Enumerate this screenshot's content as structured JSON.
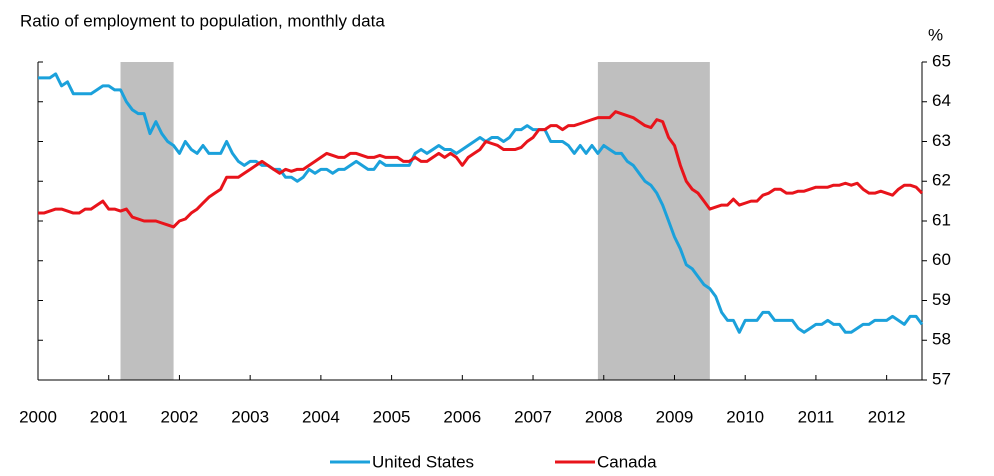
{
  "chart_data": {
    "type": "line",
    "title": "Ratio of employment to population, monthly data",
    "y_axis_label": "%",
    "x": [
      2000,
      2000.083,
      2000.167,
      2000.25,
      2000.333,
      2000.417,
      2000.5,
      2000.583,
      2000.667,
      2000.75,
      2000.833,
      2000.917,
      2001,
      2001.083,
      2001.167,
      2001.25,
      2001.333,
      2001.417,
      2001.5,
      2001.583,
      2001.667,
      2001.75,
      2001.833,
      2001.917,
      2002,
      2002.083,
      2002.167,
      2002.25,
      2002.333,
      2002.417,
      2002.5,
      2002.583,
      2002.667,
      2002.75,
      2002.833,
      2002.917,
      2003,
      2003.083,
      2003.167,
      2003.25,
      2003.333,
      2003.417,
      2003.5,
      2003.583,
      2003.667,
      2003.75,
      2003.833,
      2003.917,
      2004,
      2004.083,
      2004.167,
      2004.25,
      2004.333,
      2004.417,
      2004.5,
      2004.583,
      2004.667,
      2004.75,
      2004.833,
      2004.917,
      2005,
      2005.083,
      2005.167,
      2005.25,
      2005.333,
      2005.417,
      2005.5,
      2005.583,
      2005.667,
      2005.75,
      2005.833,
      2005.917,
      2006,
      2006.083,
      2006.167,
      2006.25,
      2006.333,
      2006.417,
      2006.5,
      2006.583,
      2006.667,
      2006.75,
      2006.833,
      2006.917,
      2007,
      2007.083,
      2007.167,
      2007.25,
      2007.333,
      2007.417,
      2007.5,
      2007.583,
      2007.667,
      2007.75,
      2007.833,
      2007.917,
      2008,
      2008.083,
      2008.167,
      2008.25,
      2008.333,
      2008.417,
      2008.5,
      2008.583,
      2008.667,
      2008.75,
      2008.833,
      2008.917,
      2009,
      2009.083,
      2009.167,
      2009.25,
      2009.333,
      2009.417,
      2009.5,
      2009.583,
      2009.667,
      2009.75,
      2009.833,
      2009.917,
      2010,
      2010.083,
      2010.167,
      2010.25,
      2010.333,
      2010.417,
      2010.5,
      2010.583,
      2010.667,
      2010.75,
      2010.833,
      2010.917,
      2011,
      2011.083,
      2011.167,
      2011.25,
      2011.333,
      2011.417,
      2011.5,
      2011.583,
      2011.667,
      2011.75,
      2011.833,
      2011.917,
      2012,
      2012.083,
      2012.167,
      2012.25,
      2012.333,
      2012.417,
      2012.5
    ],
    "series": [
      {
        "name": "United States",
        "color": "#1ba1db",
        "values": [
          64.6,
          64.6,
          64.6,
          64.7,
          64.4,
          64.5,
          64.2,
          64.2,
          64.2,
          64.2,
          64.3,
          64.4,
          64.4,
          64.3,
          64.3,
          64.0,
          63.8,
          63.7,
          63.7,
          63.2,
          63.5,
          63.2,
          63.0,
          62.9,
          62.7,
          63.0,
          62.8,
          62.7,
          62.9,
          62.7,
          62.7,
          62.7,
          63.0,
          62.7,
          62.5,
          62.4,
          62.5,
          62.5,
          62.4,
          62.4,
          62.3,
          62.3,
          62.1,
          62.1,
          62.0,
          62.1,
          62.3,
          62.2,
          62.3,
          62.3,
          62.2,
          62.3,
          62.3,
          62.4,
          62.5,
          62.4,
          62.3,
          62.3,
          62.5,
          62.4,
          62.4,
          62.4,
          62.4,
          62.4,
          62.7,
          62.8,
          62.7,
          62.8,
          62.9,
          62.8,
          62.8,
          62.7,
          62.8,
          62.9,
          63.0,
          63.1,
          63.0,
          63.1,
          63.1,
          63.0,
          63.1,
          63.3,
          63.3,
          63.4,
          63.3,
          63.3,
          63.3,
          63.0,
          63.0,
          63.0,
          62.9,
          62.7,
          62.9,
          62.7,
          62.9,
          62.7,
          62.9,
          62.8,
          62.7,
          62.7,
          62.5,
          62.4,
          62.2,
          62.0,
          61.9,
          61.7,
          61.4,
          61.0,
          60.6,
          60.3,
          59.9,
          59.8,
          59.6,
          59.4,
          59.3,
          59.1,
          58.7,
          58.5,
          58.5,
          58.2,
          58.5,
          58.5,
          58.5,
          58.7,
          58.7,
          58.5,
          58.5,
          58.5,
          58.5,
          58.3,
          58.2,
          58.3,
          58.4,
          58.4,
          58.5,
          58.4,
          58.4,
          58.2,
          58.2,
          58.3,
          58.4,
          58.4,
          58.5,
          58.5,
          58.5,
          58.6,
          58.5,
          58.4,
          58.6,
          58.6,
          58.4
        ]
      },
      {
        "name": "Canada",
        "color": "#e8141b",
        "values": [
          61.2,
          61.2,
          61.25,
          61.3,
          61.3,
          61.25,
          61.2,
          61.2,
          61.3,
          61.3,
          61.4,
          61.5,
          61.3,
          61.3,
          61.25,
          61.3,
          61.1,
          61.05,
          61.0,
          61.0,
          61.0,
          60.95,
          60.9,
          60.85,
          61.0,
          61.05,
          61.2,
          61.3,
          61.45,
          61.6,
          61.7,
          61.8,
          62.1,
          62.1,
          62.1,
          62.2,
          62.3,
          62.4,
          62.5,
          62.4,
          62.3,
          62.2,
          62.3,
          62.25,
          62.3,
          62.3,
          62.4,
          62.5,
          62.6,
          62.7,
          62.65,
          62.6,
          62.6,
          62.7,
          62.7,
          62.65,
          62.6,
          62.6,
          62.65,
          62.6,
          62.6,
          62.6,
          62.5,
          62.5,
          62.6,
          62.5,
          62.5,
          62.6,
          62.7,
          62.6,
          62.7,
          62.6,
          62.4,
          62.6,
          62.7,
          62.8,
          63.0,
          62.95,
          62.9,
          62.8,
          62.8,
          62.8,
          62.85,
          63.0,
          63.1,
          63.3,
          63.3,
          63.4,
          63.4,
          63.3,
          63.4,
          63.4,
          63.45,
          63.5,
          63.55,
          63.6,
          63.6,
          63.6,
          63.75,
          63.7,
          63.65,
          63.6,
          63.5,
          63.4,
          63.35,
          63.55,
          63.5,
          63.1,
          62.9,
          62.4,
          62.0,
          61.8,
          61.7,
          61.5,
          61.3,
          61.35,
          61.4,
          61.4,
          61.55,
          61.4,
          61.45,
          61.5,
          61.5,
          61.65,
          61.7,
          61.8,
          61.8,
          61.7,
          61.7,
          61.75,
          61.75,
          61.8,
          61.85,
          61.85,
          61.85,
          61.9,
          61.9,
          61.95,
          61.9,
          61.95,
          61.8,
          61.7,
          61.7,
          61.75,
          61.7,
          61.65,
          61.8,
          61.9,
          61.9,
          61.85,
          61.7
        ]
      }
    ],
    "shaded_periods": [
      {
        "start": 2001.167,
        "end": 2001.917
      },
      {
        "start": 2007.917,
        "end": 2009.5
      }
    ],
    "shade_color": "#bfbfbf",
    "xlim": [
      2000,
      2012.5
    ],
    "xticks": [
      2000,
      2001,
      2002,
      2003,
      2004,
      2005,
      2006,
      2007,
      2008,
      2009,
      2010,
      2011,
      2012
    ],
    "ylim": [
      57,
      65
    ],
    "yticks": [
      57,
      58,
      59,
      60,
      61,
      62,
      63,
      64,
      65
    ],
    "y_axis_side": "right",
    "legend": "bottom"
  }
}
